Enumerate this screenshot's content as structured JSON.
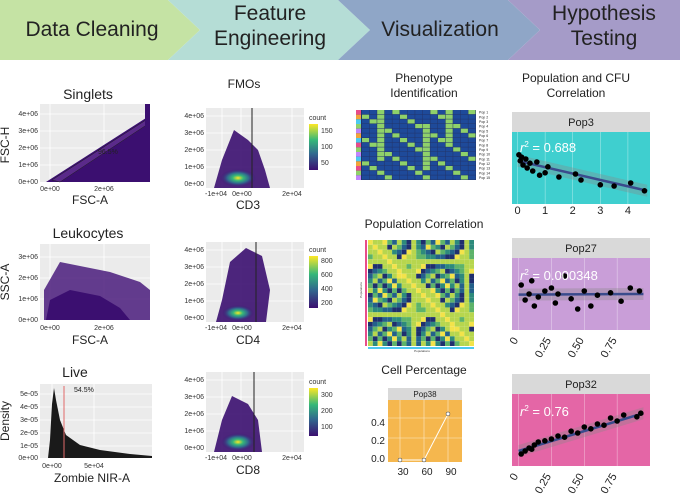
{
  "pipeline": {
    "stages": [
      {
        "label_lines": [
          "Data Cleaning"
        ],
        "color": "#c5e3a4"
      },
      {
        "label_lines": [
          "Feature",
          "Engineering"
        ],
        "color": "#b5ddd6"
      },
      {
        "label_lines": [
          "Visualization"
        ],
        "color": "#8fa6c7"
      },
      {
        "label_lines": [
          "Hypothesis",
          "Testing"
        ],
        "color": "#a59bc8"
      }
    ]
  },
  "column1": {
    "panels": [
      {
        "title": "Singlets",
        "ylabel": "FSC-H",
        "xlabel": "FSC-A",
        "yticks": [
          "4e+06",
          "3e+06",
          "2e+06",
          "1e+06",
          "0e+00"
        ],
        "xticks": [
          "0e+00",
          "2e+06"
        ],
        "annotation": "96.5%"
      },
      {
        "title": "Leukocytes",
        "ylabel": "SSC-A",
        "xlabel": "FSC-A",
        "yticks": [
          "3e+06",
          "2e+06",
          "1e+06",
          "0e+00"
        ],
        "xticks": [
          "0e+00",
          "2e+06"
        ]
      },
      {
        "title": "Live",
        "ylabel": "Density",
        "xlabel": "Zombie NIR-A",
        "yticks": [
          "5e-05",
          "4e-05",
          "3e-05",
          "2e-05",
          "1e-05",
          "0e+00"
        ],
        "xticks": [
          "0e+00",
          "5e+04"
        ],
        "annotation": "54.5%"
      }
    ]
  },
  "column2": {
    "title": "FMOs",
    "panels": [
      {
        "xlabel": "CD3",
        "yticks": [
          "4e+06",
          "3e+06",
          "2e+06",
          "1e+06",
          "0e+00"
        ],
        "xticks": [
          "-1e+04",
          "0e+00",
          "2e+04"
        ],
        "legend_title": "count",
        "legend_ticks": [
          "150",
          "100",
          "50"
        ]
      },
      {
        "xlabel": "CD4",
        "yticks": [
          "4e+06",
          "3e+06",
          "2e+06",
          "1e+06",
          "0e+00"
        ],
        "xticks": [
          "-1e+04",
          "0e+00",
          "2e+04"
        ],
        "legend_title": "count",
        "legend_ticks": [
          "800",
          "600",
          "400",
          "200"
        ]
      },
      {
        "xlabel": "CD8",
        "yticks": [
          "4e+06",
          "3e+06",
          "2e+06",
          "1e+06",
          "0e+00"
        ],
        "xticks": [
          "-1e+04",
          "0e+00",
          "2e+04"
        ],
        "legend_title": "count",
        "legend_ticks": [
          "300",
          "200",
          "100"
        ]
      }
    ]
  },
  "column3": {
    "phenotype_title_lines": [
      "Phenotype",
      "Identification"
    ],
    "phenotype_rows": [
      "Pop 1",
      "Pop 2",
      "Pop 3",
      "Pop 4",
      "Pop 5",
      "Pop 6",
      "Pop 7",
      "Pop 8",
      "Pop 9",
      "Pop 10",
      "Pop 11",
      "Pop 12",
      "Pop 13",
      "Pop 14",
      "Pop 15"
    ],
    "correlation_title": "Population Correlation",
    "correlation_xlabel": "Populations",
    "correlation_ylabel": "Populations",
    "cell_pct_title": "Cell Percentage",
    "cell_pct_chart": {
      "strip": "Pop38",
      "x": [
        30,
        60,
        90
      ],
      "y": [
        0.0,
        0.0,
        0.48
      ],
      "xticks": [
        "30",
        "60",
        "90"
      ],
      "yticks": [
        "0.4",
        "0.2",
        "0.0"
      ]
    }
  },
  "column4": {
    "title_lines": [
      "Population and CFU",
      "Correlation"
    ],
    "chart_data": [
      {
        "type": "scatter",
        "strip": "Pop3",
        "r2_value": " = 0.688",
        "bg": "#3fcfcf",
        "xticks": [
          "0",
          "1",
          "2",
          "3",
          "4"
        ],
        "xlim": [
          -0.2,
          4.8
        ],
        "ylim": [
          0,
          1
        ],
        "x": [
          0.05,
          0.1,
          0.15,
          0.2,
          0.3,
          0.35,
          0.45,
          0.55,
          0.7,
          0.8,
          1.0,
          1.1,
          1.5,
          2.1,
          2.3,
          3.0,
          3.5,
          4.1,
          4.6
        ],
        "y": [
          0.72,
          0.62,
          0.68,
          0.55,
          0.65,
          0.5,
          0.58,
          0.45,
          0.6,
          0.38,
          0.42,
          0.52,
          0.35,
          0.4,
          0.3,
          0.22,
          0.2,
          0.25,
          0.12
        ],
        "fit": [
          [
            0,
            0.62
          ],
          [
            4.7,
            0.12
          ]
        ]
      },
      {
        "type": "scatter",
        "strip": "Pop27",
        "r2_value": " = 0.000348",
        "bg": "#c99ed8",
        "xticks": [
          "0",
          "0.25",
          "0.50",
          "0.75"
        ],
        "xlim": [
          -0.05,
          1.0
        ],
        "ylim": [
          0,
          1
        ],
        "x": [
          0.02,
          0.05,
          0.08,
          0.1,
          0.12,
          0.15,
          0.2,
          0.25,
          0.28,
          0.3,
          0.35,
          0.4,
          0.45,
          0.5,
          0.55,
          0.6,
          0.7,
          0.78,
          0.85,
          0.92
        ],
        "y": [
          0.65,
          0.4,
          0.5,
          0.72,
          0.3,
          0.45,
          0.55,
          0.6,
          0.35,
          0.5,
          0.8,
          0.42,
          0.25,
          0.55,
          0.3,
          0.48,
          0.52,
          0.38,
          0.6,
          0.55
        ],
        "fit": [
          [
            0,
            0.49
          ],
          [
            0.95,
            0.5
          ]
        ]
      },
      {
        "type": "scatter",
        "strip": "Pop32",
        "r2_value": " = 0.76",
        "bg": "#e466a6",
        "xticks": [
          "0",
          "0.25",
          "0.50",
          "0.75"
        ],
        "xlim": [
          -0.05,
          1.0
        ],
        "ylim": [
          0,
          1
        ],
        "x": [
          0.02,
          0.05,
          0.08,
          0.1,
          0.12,
          0.15,
          0.2,
          0.25,
          0.3,
          0.35,
          0.4,
          0.45,
          0.5,
          0.55,
          0.6,
          0.65,
          0.7,
          0.75,
          0.8,
          0.9,
          0.93
        ],
        "y": [
          0.1,
          0.15,
          0.2,
          0.18,
          0.25,
          0.3,
          0.32,
          0.35,
          0.4,
          0.38,
          0.48,
          0.45,
          0.55,
          0.52,
          0.6,
          0.58,
          0.7,
          0.65,
          0.75,
          0.72,
          0.78
        ],
        "fit": [
          [
            0,
            0.15
          ],
          [
            0.95,
            0.78
          ]
        ]
      }
    ]
  }
}
